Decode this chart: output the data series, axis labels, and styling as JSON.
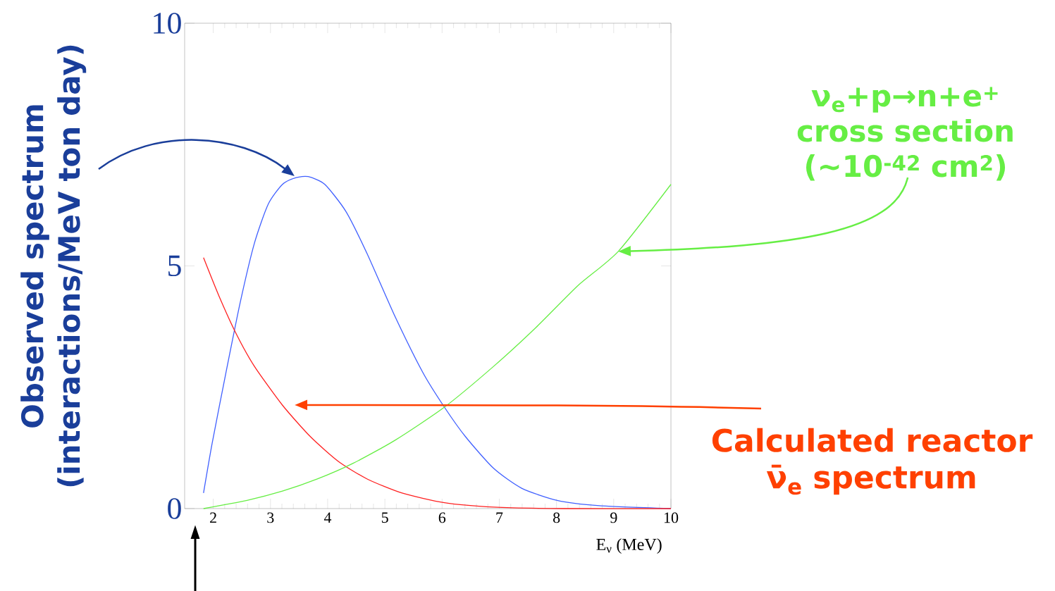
{
  "chart_data": {
    "type": "line",
    "ylabel": "Observed spectrum (interactions/MeV ton day)",
    "xlabel": "E$_{ν}$ (MeV)",
    "xlim": [
      1.5,
      10
    ],
    "xticks": [
      2,
      3,
      4,
      5,
      6,
      7,
      8,
      9,
      10
    ],
    "ylim": [
      0,
      10
    ],
    "yticks": [
      0,
      5,
      10
    ],
    "marker": "none",
    "line_style": "solid",
    "series": [
      {
        "color": "#4060ff",
        "x": [
          1.83,
          1.98,
          2.22,
          2.47,
          2.72,
          2.96,
          3.21,
          3.45,
          3.66,
          3.95,
          4.32,
          4.69,
          5.18,
          5.67,
          6.04,
          6.41,
          6.9,
          7.39,
          8.01,
          8.75,
          10
        ],
        "values": [
          0.32,
          1.34,
          2.79,
          4.24,
          5.47,
          6.27,
          6.68,
          6.82,
          6.84,
          6.68,
          6.12,
          5.25,
          3.95,
          2.79,
          2.09,
          1.48,
          0.83,
          0.42,
          0.17,
          0.06,
          0
        ]
      },
      {
        "color": "#ff2020",
        "x": [
          1.83,
          2.1,
          2.41,
          2.72,
          3.21,
          3.7,
          4.19,
          4.69,
          5.3,
          6.04,
          6.9,
          8.13,
          10
        ],
        "values": [
          5.17,
          4.38,
          3.58,
          2.93,
          2.13,
          1.48,
          0.97,
          0.61,
          0.32,
          0.12,
          0.03,
          0,
          0
        ]
      },
      {
        "color": "#66ee44",
        "x": [
          1.83,
          2.59,
          3.21,
          3.82,
          4.44,
          5.18,
          6.04,
          6.9,
          7.64,
          8.38,
          9.08,
          10
        ],
        "values": [
          0,
          0.17,
          0.36,
          0.61,
          0.93,
          1.41,
          2.09,
          2.93,
          3.73,
          4.6,
          5.3,
          6.68
        ]
      }
    ],
    "annotations": [
      "ν$_{e}$+p→n+e$^{+}$ cross section (~10$^{-42}$ cm$^{2}$)",
      "Calculated reactor ν̄$_{e}$ spectrum"
    ]
  }
}
